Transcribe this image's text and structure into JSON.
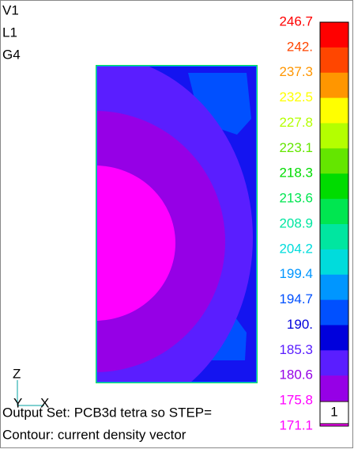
{
  "view": {
    "labels": [
      "V1",
      "L1",
      "G4"
    ]
  },
  "legend": {
    "levels": [
      {
        "label": "246.7",
        "color": "#ff0000"
      },
      {
        "label": "242.",
        "color": "#ff4600"
      },
      {
        "label": "237.3",
        "color": "#ff9600"
      },
      {
        "label": "232.5",
        "color": "#ffff00"
      },
      {
        "label": "227.8",
        "color": "#b4ff00"
      },
      {
        "label": "223.1",
        "color": "#64e600"
      },
      {
        "label": "218.3",
        "color": "#00dc00"
      },
      {
        "label": "213.6",
        "color": "#00e650"
      },
      {
        "label": "208.9",
        "color": "#00e6a0"
      },
      {
        "label": "204.2",
        "color": "#00dcdc"
      },
      {
        "label": "199.4",
        "color": "#0096ff"
      },
      {
        "label": "194.7",
        "color": "#0050ff"
      },
      {
        "label": "190.",
        "color": "#0000dc"
      },
      {
        "label": "185.3",
        "color": "#5a1eff"
      },
      {
        "label": "180.6",
        "color": "#9600e6"
      },
      {
        "label": "175.8",
        "color": "#ff00ff"
      },
      {
        "label": "171.1",
        "color": "#ff00ff"
      }
    ]
  },
  "triad": {
    "z": "Z",
    "y": "Y",
    "x": "X"
  },
  "status": {
    "output_set": "Output Set:  PCB3d tetra so STEP=",
    "step": "1",
    "contour": "Contour:  current density vector"
  }
}
